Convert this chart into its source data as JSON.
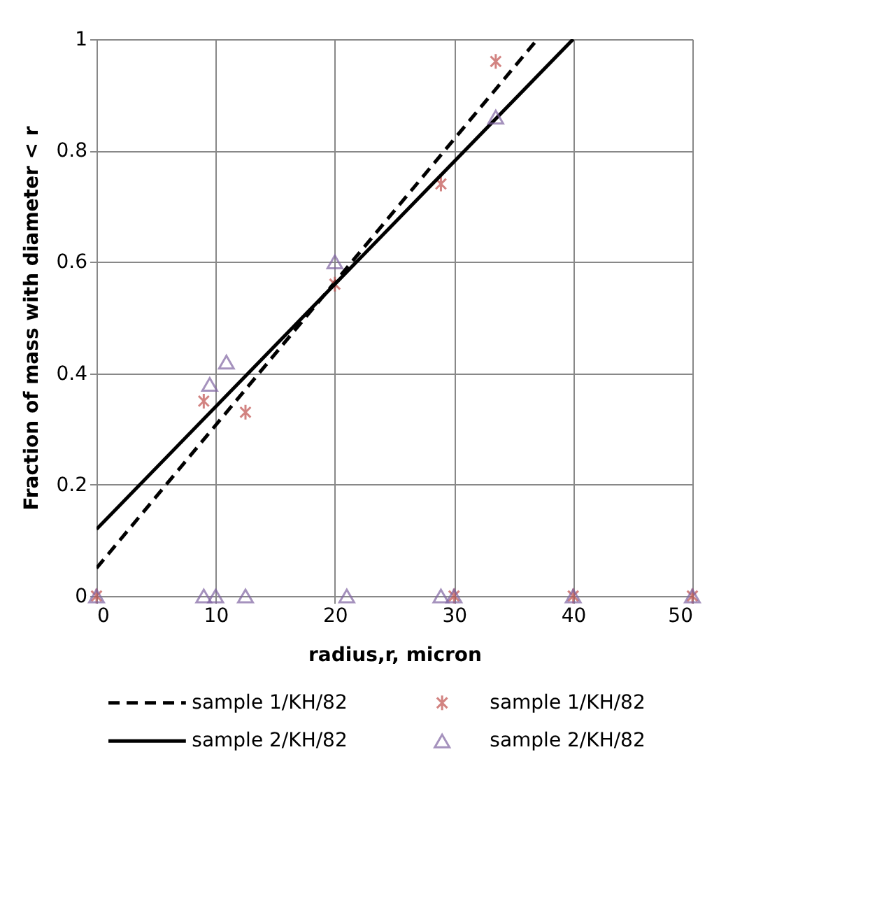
{
  "chart_data": {
    "type": "scatter",
    "xlabel": "radius,r, micron",
    "ylabel": "Fraction of mass with diameter < r",
    "xlim": [
      0,
      50
    ],
    "ylim": [
      0,
      1
    ],
    "xticks": [
      0,
      10,
      20,
      30,
      40,
      50
    ],
    "yticks": [
      0,
      0.2,
      0.4,
      0.6,
      0.8,
      1
    ],
    "grid": true,
    "legend": "bottom",
    "series": [
      {
        "name": "sample 1/KH/82",
        "type": "line",
        "line_style": "dashed",
        "color": "#000000",
        "x": [
          0,
          37
        ],
        "values": [
          0.05,
          1.0
        ]
      },
      {
        "name": "sample 1/KH/82",
        "type": "scatter",
        "marker": "cross",
        "color": "#c0504d",
        "x": [
          0,
          9,
          12.5,
          20,
          28.9,
          33.5,
          30,
          40,
          50
        ],
        "values": [
          0,
          0.35,
          0.33,
          0.56,
          0.74,
          0.96,
          0,
          0,
          0
        ]
      },
      {
        "name": "sample 2/KH/82",
        "type": "line",
        "line_style": "solid",
        "color": "#000000",
        "x": [
          0,
          40
        ],
        "values": [
          0.12,
          1.0
        ]
      },
      {
        "name": "sample 2/KH/82",
        "type": "scatter",
        "marker": "triangle",
        "color": "#8064a2",
        "x": [
          0,
          9.5,
          10.9,
          20,
          33.5,
          9,
          10,
          12.5,
          21,
          28.9,
          30,
          40,
          50
        ],
        "values": [
          0,
          0.38,
          0.42,
          0.6,
          0.86,
          0,
          0,
          0,
          0,
          0,
          0,
          0,
          0
        ]
      }
    ]
  }
}
